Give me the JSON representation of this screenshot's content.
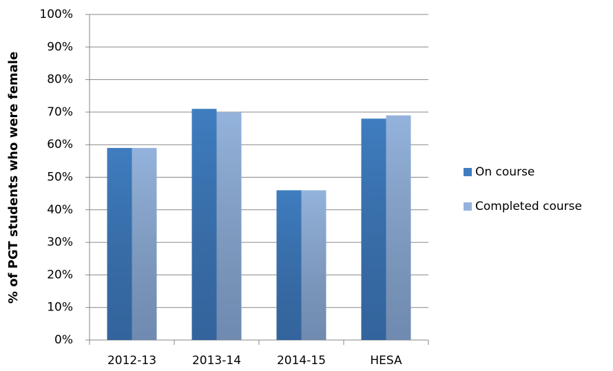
{
  "chart_data": {
    "type": "bar",
    "y_axis_label": "% of PGT students who were female",
    "categories": [
      "2012-13",
      "2013-14",
      "2014-15",
      "HESA"
    ],
    "series": [
      {
        "name": "On course",
        "color": "#3f7dc0",
        "values": [
          59,
          71,
          46,
          68
        ]
      },
      {
        "name": "Completed course",
        "color": "#94b3dc",
        "values": [
          59,
          70,
          46,
          69
        ]
      }
    ],
    "ylim": [
      0,
      100
    ],
    "yticks": [
      {
        "value": 0,
        "label": "0%"
      },
      {
        "value": 10,
        "label": "10%"
      },
      {
        "value": 20,
        "label": "20%"
      },
      {
        "value": 30,
        "label": "30%"
      },
      {
        "value": 40,
        "label": "40%"
      },
      {
        "value": 50,
        "label": "50%"
      },
      {
        "value": 60,
        "label": "60%"
      },
      {
        "value": 70,
        "label": "70%"
      },
      {
        "value": 80,
        "label": "80%"
      },
      {
        "value": 90,
        "label": "90%"
      },
      {
        "value": 100,
        "label": "100%"
      }
    ],
    "grid": true,
    "legend": "right"
  }
}
